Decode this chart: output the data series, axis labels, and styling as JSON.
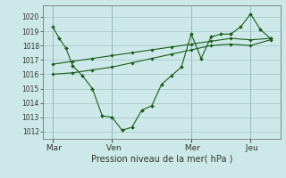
{
  "background_color": "#cce8e8",
  "grid_color": "#aacccc",
  "line_color": "#1a5c1a",
  "xlabel": "Pression niveau de la mer( hPa )",
  "ylim": [
    1011.5,
    1020.8
  ],
  "yticks": [
    1012,
    1013,
    1014,
    1015,
    1016,
    1017,
    1018,
    1019,
    1020
  ],
  "day_labels": [
    " Mar",
    " Ven",
    " Mer",
    " Jeu"
  ],
  "day_positions": [
    0,
    3,
    7,
    10
  ],
  "xlim": [
    -0.5,
    11.5
  ],
  "series1_jagged": {
    "x": [
      0,
      0.33,
      0.67,
      1.0,
      1.5,
      2.0,
      2.5,
      3.0,
      3.5,
      4.0,
      4.5,
      5.0,
      5.5,
      6.0,
      6.5,
      7.0,
      7.5,
      8.0,
      8.5,
      9.0,
      9.5,
      10.0,
      10.5,
      11.0
    ],
    "y": [
      1019.3,
      1018.5,
      1017.8,
      1016.6,
      1015.9,
      1015.0,
      1013.1,
      1013.0,
      1012.1,
      1012.3,
      1013.5,
      1013.8,
      1015.3,
      1015.9,
      1016.5,
      1018.8,
      1017.1,
      1018.6,
      1018.8,
      1018.8,
      1019.3,
      1020.2,
      1019.1,
      1018.5
    ]
  },
  "series2_upper": {
    "x": [
      0,
      1,
      2,
      3,
      4,
      5,
      6,
      7,
      8,
      9,
      10,
      11
    ],
    "y": [
      1016.7,
      1016.9,
      1017.1,
      1017.3,
      1017.5,
      1017.7,
      1017.9,
      1018.1,
      1018.3,
      1018.5,
      1018.4,
      1018.5
    ]
  },
  "series3_lower": {
    "x": [
      0,
      1,
      2,
      3,
      4,
      5,
      6,
      7,
      8,
      9,
      10,
      11
    ],
    "y": [
      1016.0,
      1016.1,
      1016.3,
      1016.5,
      1016.8,
      1017.1,
      1017.4,
      1017.7,
      1018.0,
      1018.1,
      1018.0,
      1018.4
    ]
  }
}
